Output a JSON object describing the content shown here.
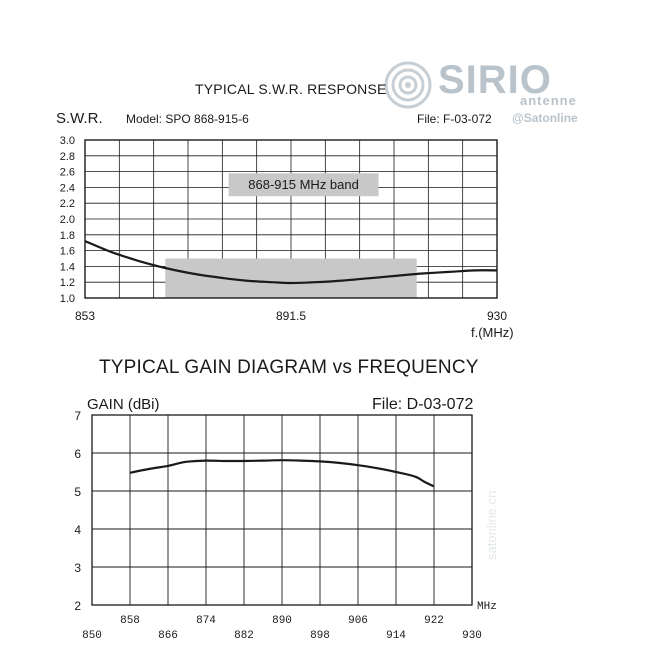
{
  "branding": {
    "logo_word": "SIRIO",
    "logo_sub": "antenne",
    "watermark_handle": "@Satonline",
    "watermark_vertical": "satonline.cn"
  },
  "swr_chart": {
    "title": "TYPICAL S.W.R. RESPONSE",
    "ylabel": "S.W.R.",
    "model": "Model:  SPO 868-915-6",
    "file": "File:  F-03-072",
    "band_label": "868-915 MHz band"
  },
  "gain_chart": {
    "title": "TYPICAL GAIN DIAGRAM vs FREQUENCY",
    "ylabel": "GAIN (dBi)",
    "file": "File:  D-03-072"
  },
  "chart_data": [
    {
      "type": "line",
      "title": "TYPICAL S.W.R. RESPONSE",
      "ylabel": "S.W.R.",
      "xlabel": "f.(MHz)",
      "xlim": [
        853,
        930
      ],
      "ylim": [
        1.0,
        3.0
      ],
      "x_tick_labels": [
        "853",
        "891.5",
        "930"
      ],
      "y_tick_labels": [
        "1.0",
        "1.2",
        "1.4",
        "1.6",
        "1.8",
        "2.0",
        "2.2",
        "2.4",
        "2.6",
        "2.8",
        "3.0"
      ],
      "grid": true,
      "band": {
        "label": "868-915 MHz band",
        "from": 868,
        "to": 915
      },
      "series": [
        {
          "x": [
            853,
            858,
            863,
            868,
            873,
            878,
            883,
            888,
            891.5,
            896,
            901,
            906,
            911,
            916,
            921,
            926,
            930
          ],
          "values": [
            1.72,
            1.58,
            1.47,
            1.38,
            1.31,
            1.26,
            1.22,
            1.2,
            1.19,
            1.2,
            1.22,
            1.25,
            1.28,
            1.31,
            1.33,
            1.35,
            1.35
          ]
        }
      ]
    },
    {
      "type": "line",
      "title": "TYPICAL GAIN DIAGRAM vs FREQUENCY",
      "ylabel": "GAIN (dBi)",
      "xlabel": "MHz",
      "xlim": [
        850,
        930
      ],
      "ylim": [
        2,
        7
      ],
      "x_tick_labels_upper": [
        "858",
        "874",
        "890",
        "906",
        "922"
      ],
      "x_tick_labels_lower": [
        "850",
        "866",
        "882",
        "898",
        "914",
        "930"
      ],
      "y_tick_labels": [
        "2",
        "3",
        "4",
        "5",
        "6",
        "7"
      ],
      "grid": true,
      "series": [
        {
          "x": [
            858,
            862,
            866,
            868,
            870,
            874,
            878,
            882,
            886,
            890,
            894,
            898,
            902,
            906,
            910,
            914,
            918,
            920,
            922
          ],
          "values": [
            5.48,
            5.58,
            5.66,
            5.72,
            5.77,
            5.8,
            5.79,
            5.79,
            5.8,
            5.81,
            5.8,
            5.78,
            5.74,
            5.68,
            5.6,
            5.5,
            5.38,
            5.24,
            5.12
          ]
        }
      ]
    }
  ]
}
